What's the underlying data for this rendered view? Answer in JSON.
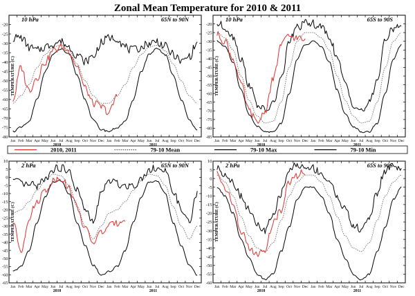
{
  "title": "Zonal Mean Temperature for 2010 & 2011",
  "legend": [
    {
      "label": "2010, 2011",
      "style": "obs",
      "color": "#e0302a"
    },
    {
      "label": "79-10 Mean",
      "style": "mean",
      "color": "#555555"
    },
    {
      "label": "79-10 Max",
      "style": "max",
      "color": "#000000"
    },
    {
      "label": "79-10 Min",
      "style": "min",
      "color": "#000000"
    }
  ],
  "months": [
    "Jan",
    "Feb",
    "Mar",
    "Apr",
    "May",
    "Jun",
    "Jul",
    "Aug",
    "Sep",
    "Oct",
    "Nov",
    "Dec",
    "Jan",
    "Feb",
    "Mar",
    "Apr",
    "May",
    "Jun",
    "Jul",
    "Aug",
    "Sep",
    "Oct",
    "Nov",
    "Dec"
  ],
  "years": [
    "2010",
    "2011"
  ],
  "ylabel": "TEMPERATURE (C)",
  "chart_data": [
    {
      "type": "line",
      "pressure": "10 hPa",
      "region": "65N to 90N",
      "ylabel": "TEMPERATURE (C)",
      "ylim": [
        -80,
        -15
      ],
      "yticks": [
        -20,
        -25,
        -30,
        -35,
        -40,
        -45,
        -50,
        -55,
        -60,
        -65,
        -70,
        -75,
        -80
      ],
      "x_months": [
        0,
        1,
        2,
        3,
        4,
        5,
        6,
        7,
        8,
        9,
        10,
        11,
        12,
        13,
        14,
        15,
        16,
        17,
        18,
        19,
        20,
        21,
        22,
        23
      ],
      "series": [
        {
          "name": "79-10 Mean",
          "values": [
            -62,
            -58,
            -52,
            -43,
            -36,
            -32,
            -31,
            -34,
            -41,
            -50,
            -58,
            -62,
            -62,
            -58,
            -52,
            -43,
            -36,
            -32,
            -31,
            -34,
            -41,
            -50,
            -58,
            -62
          ]
        },
        {
          "name": "79-10 Max",
          "values": [
            -27,
            -27,
            -32,
            -34,
            -32,
            -30,
            -29,
            -32,
            -36,
            -40,
            -37,
            -30,
            -27,
            -27,
            -32,
            -34,
            -32,
            -30,
            -29,
            -32,
            -36,
            -40,
            -37,
            -30
          ]
        },
        {
          "name": "79-10 Min",
          "values": [
            -77,
            -75,
            -72,
            -60,
            -45,
            -36,
            -33,
            -36,
            -47,
            -60,
            -71,
            -76,
            -77,
            -75,
            -72,
            -60,
            -45,
            -36,
            -33,
            -36,
            -47,
            -60,
            -71,
            -76
          ]
        },
        {
          "name": "2010, 2011",
          "values": [
            -60,
            -43,
            -55,
            -48,
            -40,
            -34,
            -32,
            -34,
            -42,
            -54,
            -62,
            -64,
            -67,
            -58
          ]
        }
      ]
    },
    {
      "type": "line",
      "pressure": "10 hPa",
      "region": "65S to 90S",
      "ylabel": "TEMPERATURE (C)",
      "ylim": [
        -85,
        -15
      ],
      "yticks": [
        -20,
        -25,
        -30,
        -35,
        -40,
        -45,
        -50,
        -55,
        -60,
        -65,
        -70,
        -75,
        -80,
        -85
      ],
      "x_months": [
        0,
        1,
        2,
        3,
        4,
        5,
        6,
        7,
        8,
        9,
        10,
        11,
        12,
        13,
        14,
        15,
        16,
        17,
        18,
        19,
        20,
        21,
        22,
        23
      ],
      "series": [
        {
          "name": "79-10 Mean",
          "values": [
            -25,
            -28,
            -35,
            -50,
            -64,
            -73,
            -77,
            -76,
            -65,
            -45,
            -30,
            -25,
            -25,
            -28,
            -35,
            -50,
            -64,
            -73,
            -77,
            -76,
            -65,
            -45,
            -30,
            -25
          ]
        },
        {
          "name": "79-10 Max",
          "values": [
            -20,
            -22,
            -27,
            -40,
            -55,
            -66,
            -70,
            -66,
            -52,
            -30,
            -22,
            -20,
            -20,
            -22,
            -27,
            -40,
            -55,
            -66,
            -70,
            -66,
            -52,
            -30,
            -22,
            -20
          ]
        },
        {
          "name": "79-10 Min",
          "values": [
            -30,
            -33,
            -42,
            -58,
            -72,
            -79,
            -82,
            -82,
            -77,
            -60,
            -40,
            -32,
            -30,
            -33,
            -42,
            -58,
            -72,
            -79,
            -82,
            -82,
            -77,
            -60,
            -40,
            -32
          ]
        },
        {
          "name": "2010, 2011",
          "values": [
            -26,
            -30,
            -40,
            -55,
            -70,
            -77,
            -70,
            -52,
            -32,
            -27,
            -28,
            -30
          ]
        }
      ]
    },
    {
      "type": "line",
      "pressure": "2 hPa",
      "region": "65N to 90N",
      "ylabel": "TEMPERATURE (C)",
      "ylim": [
        -65,
        10
      ],
      "yticks": [
        10,
        5,
        0,
        -5,
        -10,
        -15,
        -20,
        -25,
        -30,
        -35,
        -40,
        -45,
        -50,
        -55,
        -60,
        -65
      ],
      "x_months": [
        0,
        1,
        2,
        3,
        4,
        5,
        6,
        7,
        8,
        9,
        10,
        11,
        12,
        13,
        14,
        15,
        16,
        17,
        18,
        19,
        20,
        21,
        22,
        23
      ],
      "series": [
        {
          "name": "79-10 Mean",
          "values": [
            -22,
            -20,
            -15,
            -8,
            -2,
            2,
            1,
            -5,
            -18,
            -30,
            -38,
            -30,
            -22,
            -20,
            -15,
            -8,
            -2,
            2,
            1,
            -5,
            -18,
            -30,
            -38,
            -30
          ]
        },
        {
          "name": "79-10 Max",
          "values": [
            -2,
            -4,
            -5,
            -5,
            -1,
            5,
            6,
            3,
            -8,
            -20,
            -28,
            -10,
            -2,
            -4,
            -5,
            -5,
            -1,
            5,
            6,
            3,
            -8,
            -20,
            -28,
            -10
          ]
        },
        {
          "name": "79-10 Min",
          "values": [
            -58,
            -55,
            -45,
            -28,
            -12,
            -3,
            -2,
            -10,
            -28,
            -42,
            -54,
            -60,
            -58,
            -55,
            -45,
            -28,
            -12,
            -3,
            -2,
            -10,
            -28,
            -42,
            -54,
            -60
          ]
        },
        {
          "name": "2010, 2011",
          "values": [
            -28,
            -45,
            -25,
            -15,
            -8,
            -2,
            0,
            -7,
            -18,
            -32,
            -40,
            -34,
            -30,
            -28,
            -25
          ]
        }
      ]
    },
    {
      "type": "line",
      "pressure": "2 hPa",
      "region": "65S to 90S",
      "ylabel": "TEMPERATURE (C)",
      "ylim": [
        -60,
        10
      ],
      "yticks": [
        10,
        5,
        0,
        -5,
        -10,
        -15,
        -20,
        -25,
        -30,
        -35,
        -40,
        -45,
        -50,
        -55,
        -60
      ],
      "x_months": [
        0,
        1,
        2,
        3,
        4,
        5,
        6,
        7,
        8,
        9,
        10,
        11,
        12,
        13,
        14,
        15,
        16,
        17,
        18,
        19,
        20,
        21,
        22,
        23
      ],
      "series": [
        {
          "name": "79-10 Mean",
          "values": [
            2,
            -2,
            -10,
            -22,
            -33,
            -40,
            -42,
            -37,
            -24,
            -10,
            -2,
            2,
            2,
            -2,
            -10,
            -22,
            -33,
            -40,
            -42,
            -37,
            -24,
            -10,
            -2,
            2
          ]
        },
        {
          "name": "79-10 Max",
          "values": [
            6,
            3,
            -2,
            -10,
            -18,
            -27,
            -30,
            -22,
            -8,
            5,
            8,
            6,
            6,
            3,
            -2,
            -10,
            -18,
            -27,
            -30,
            -22,
            -8,
            5,
            8,
            6
          ]
        },
        {
          "name": "79-10 Min",
          "values": [
            -5,
            -10,
            -20,
            -35,
            -46,
            -55,
            -58,
            -55,
            -42,
            -28,
            -12,
            -5,
            -5,
            -10,
            -20,
            -35,
            -46,
            -55,
            -58,
            -55,
            -42,
            -28,
            -12,
            -5
          ]
        },
        {
          "name": "2010, 2011",
          "values": [
            3,
            -5,
            -15,
            -30,
            -40,
            -44,
            -42,
            -25,
            -18,
            -2,
            2,
            4
          ]
        }
      ]
    }
  ]
}
